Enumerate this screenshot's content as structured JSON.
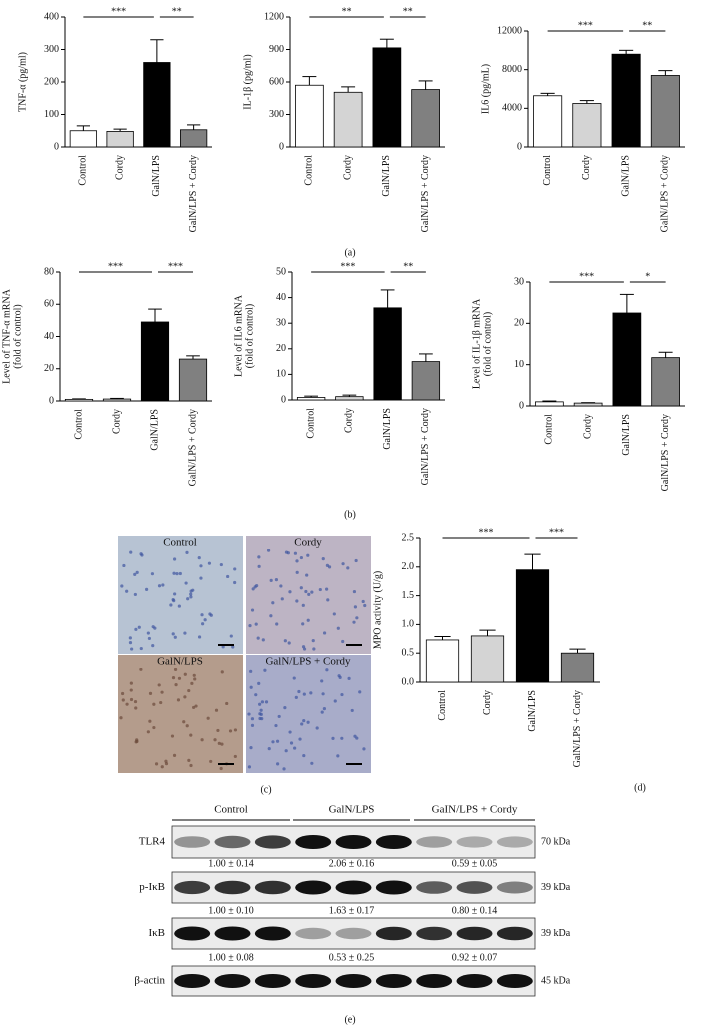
{
  "chart_data": [
    {
      "type": "bar",
      "ylabel": [
        "TNF-α (pg/ml)"
      ],
      "categories": [
        "Control",
        "Cordy",
        "GalN/LPS",
        "GalN/LPS + Cordy"
      ],
      "values": [
        50,
        48,
        260,
        53
      ],
      "errors": [
        15,
        7,
        70,
        15
      ],
      "colors": [
        "#ffffff",
        "#d4d4d4",
        "#000000",
        "#808080"
      ],
      "ylim": [
        0,
        400
      ],
      "yticks": [
        0,
        100,
        200,
        300,
        400
      ],
      "annotations": [
        "***",
        "**"
      ]
    },
    {
      "type": "bar",
      "ylabel": [
        "IL-1β (pg/ml)"
      ],
      "categories": [
        "Control",
        "Cordy",
        "GalN/LPS",
        "GalN/LPS + Cordy"
      ],
      "values": [
        570,
        505,
        915,
        530
      ],
      "errors": [
        80,
        50,
        80,
        80
      ],
      "colors": [
        "#ffffff",
        "#d4d4d4",
        "#000000",
        "#808080"
      ],
      "ylim": [
        0,
        1200
      ],
      "yticks": [
        0,
        300,
        600,
        900,
        1200
      ],
      "annotations": [
        "**",
        "**"
      ]
    },
    {
      "type": "bar",
      "ylabel": [
        "IL6 (pg/mL)"
      ],
      "categories": [
        "Control",
        "Cordy",
        "GalN/LPS",
        "GalN/LPS + Cordy"
      ],
      "values": [
        5300,
        4500,
        9600,
        7400
      ],
      "errors": [
        250,
        300,
        400,
        500
      ],
      "colors": [
        "#ffffff",
        "#d4d4d4",
        "#000000",
        "#808080"
      ],
      "ylim": [
        0,
        12000
      ],
      "yticks": [
        0,
        4000,
        8000,
        12000
      ],
      "annotations": [
        "***",
        "**"
      ]
    },
    {
      "type": "bar",
      "ylabel": [
        "Level of TNF-α mRNA",
        "(fold of control)"
      ],
      "categories": [
        "Control",
        "Cordy",
        "GalN/LPS",
        "GalN/LPS + Cordy"
      ],
      "values": [
        1,
        1.2,
        49,
        26
      ],
      "errors": [
        0.3,
        0.4,
        8,
        2
      ],
      "colors": [
        "#ffffff",
        "#d4d4d4",
        "#000000",
        "#808080"
      ],
      "ylim": [
        0,
        80
      ],
      "yticks": [
        0,
        20,
        40,
        60,
        80
      ],
      "annotations": [
        "***",
        "***"
      ]
    },
    {
      "type": "bar",
      "ylabel": [
        "Level of IL6 mRNA",
        "(fold of control)"
      ],
      "categories": [
        "Control",
        "Cordy",
        "GalN/LPS",
        "GalN/LPS + Cordy"
      ],
      "values": [
        1,
        1.3,
        36,
        15
      ],
      "errors": [
        0.5,
        0.6,
        7,
        3
      ],
      "colors": [
        "#ffffff",
        "#d4d4d4",
        "#000000",
        "#808080"
      ],
      "ylim": [
        0,
        50
      ],
      "yticks": [
        0,
        10,
        20,
        30,
        40,
        50
      ],
      "annotations": [
        "***",
        "**"
      ]
    },
    {
      "type": "bar",
      "ylabel": [
        "Level of IL-1β mRNA",
        "(fold of control)"
      ],
      "categories": [
        "Control",
        "Cordy",
        "GalN/LPS",
        "GalN/LPS + Cordy"
      ],
      "values": [
        1,
        0.7,
        22.5,
        11.7
      ],
      "errors": [
        0.2,
        0.1,
        4.5,
        1.3
      ],
      "colors": [
        "#ffffff",
        "#d4d4d4",
        "#000000",
        "#808080"
      ],
      "ylim": [
        0,
        30
      ],
      "yticks": [
        0,
        10,
        20,
        30
      ],
      "annotations": [
        "***",
        "*"
      ]
    },
    {
      "type": "bar",
      "ylabel": [
        "MPO activity (U/g)"
      ],
      "categories": [
        "Control",
        "Cordy",
        "GalN/LPS",
        "GalN/LPS + Cordy"
      ],
      "values": [
        0.73,
        0.8,
        1.95,
        0.5
      ],
      "errors": [
        0.06,
        0.1,
        0.27,
        0.07
      ],
      "colors": [
        "#ffffff",
        "#d4d4d4",
        "#000000",
        "#808080"
      ],
      "ylim": [
        0,
        2.5
      ],
      "yticks": [
        {
          "value": 0,
          "label": "0.0"
        },
        0.5,
        {
          "value": 1,
          "label": "1.0"
        },
        1.5,
        {
          "value": 2,
          "label": "2.0"
        },
        2.5
      ],
      "annotations": [
        "***",
        "***"
      ]
    }
  ],
  "panel_labels": [
    "(a)",
    "(b)",
    "(c)",
    "(d)",
    "(e)"
  ],
  "micrographs": [
    "Control",
    "Cordy",
    "GalN/LPS",
    "GalN/LPS + Cordy"
  ],
  "blot": {
    "groups": [
      "Control",
      "GalN/LPS",
      "GaIN/LPS + Cordy"
    ],
    "rows": [
      {
        "name": "TLR4",
        "size": "70 kDa",
        "quant": [
          "1.00 ± 0.14",
          "2.06 ± 0.16",
          "0.59 ± 0.05"
        ]
      },
      {
        "name": "p-IκB",
        "size": "39 kDa",
        "quant": [
          "1.00 ± 0.10",
          "1.63 ± 0.17",
          "0.80 ± 0.14"
        ]
      },
      {
        "name": "IκB",
        "size": "39 kDa",
        "quant": [
          "1.00 ± 0.08",
          "0.53 ± 0.25",
          "0.92 ± 0.07"
        ]
      },
      {
        "name": "β-actin",
        "size": "45 kDa"
      }
    ]
  }
}
